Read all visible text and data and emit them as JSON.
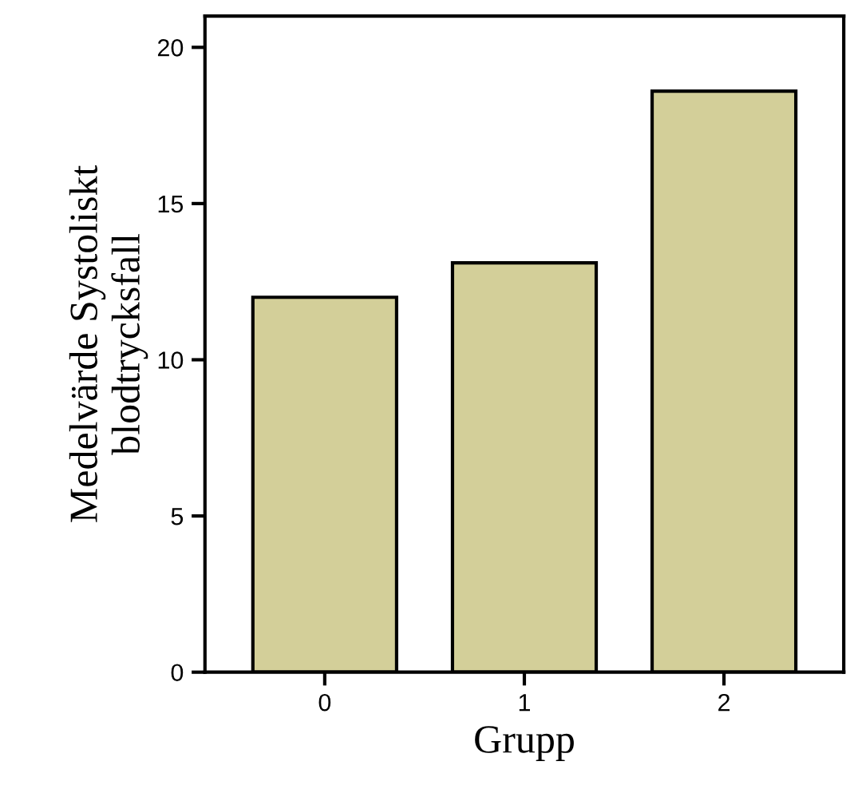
{
  "chart_data": {
    "type": "bar",
    "xlabel": "Grupp",
    "ylabel": "Medelvärde Systoliskt\nblodtrycksfall",
    "categories": [
      "0",
      "1",
      "2"
    ],
    "values": [
      12.0,
      13.1,
      18.6
    ],
    "color": "#d3cf99",
    "ylim": [
      0,
      21
    ],
    "yticks": [
      0,
      5,
      10,
      15,
      20
    ],
    "grid": false
  }
}
